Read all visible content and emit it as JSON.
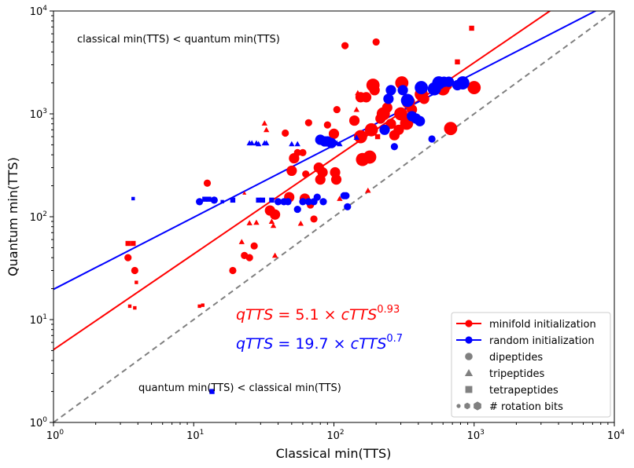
{
  "chart_data": {
    "type": "scatter",
    "xlabel": "Classical min(TTS)",
    "ylabel": "Quantum min(TTS)",
    "xscale": "log",
    "yscale": "log",
    "xlim": [
      1,
      10000
    ],
    "ylim": [
      1,
      10000
    ],
    "x_ticks": [
      {
        "value": 1,
        "base": "10",
        "exp": "0"
      },
      {
        "value": 10,
        "base": "10",
        "exp": "1"
      },
      {
        "value": 100,
        "base": "10",
        "exp": "2"
      },
      {
        "value": 1000,
        "base": "10",
        "exp": "3"
      },
      {
        "value": 10000,
        "base": "10",
        "exp": "4"
      }
    ],
    "y_ticks": [
      {
        "value": 1,
        "base": "10",
        "exp": "0"
      },
      {
        "value": 10,
        "base": "10",
        "exp": "1"
      },
      {
        "value": 100,
        "base": "10",
        "exp": "2"
      },
      {
        "value": 1000,
        "base": "10",
        "exp": "3"
      },
      {
        "value": 10000,
        "base": "10",
        "exp": "4"
      }
    ],
    "annotations": {
      "upper": "classical min(TTS) < quantum min(TTS)",
      "lower": "quantum min(TTS) < classical min(TTS)"
    },
    "equations": {
      "minifold": {
        "lhs": "qTTS",
        "coef": "5.1",
        "var": "cTTS",
        "exp": "0.93",
        "color": "#ff0000"
      },
      "random": {
        "lhs": "qTTS",
        "coef": "19.7",
        "var": "cTTS",
        "exp": "0.7",
        "color": "#0000ff"
      }
    },
    "fits": [
      {
        "series": "minifold initialization",
        "coef": 5.1,
        "exp": 0.93,
        "color": "#ff0000"
      },
      {
        "series": "random initialization",
        "coef": 19.7,
        "exp": 0.7,
        "color": "#0000ff"
      }
    ],
    "diagonal": {
      "style": "dashed",
      "color": "#808080"
    },
    "legend": {
      "position": "lower-right",
      "entries": [
        {
          "label": "minifold initialization",
          "kind": "line-marker",
          "color": "#ff0000"
        },
        {
          "label": "random initialization",
          "kind": "line-marker",
          "color": "#0000ff"
        },
        {
          "label": "dipeptides",
          "kind": "circle",
          "color": "#808080"
        },
        {
          "label": "tripeptides",
          "kind": "triangle",
          "color": "#808080"
        },
        {
          "label": "tetrapeptides",
          "kind": "square",
          "color": "#808080"
        },
        {
          "label": "# rotation bits",
          "kind": "sizes",
          "color": "#808080"
        }
      ]
    },
    "series": [
      {
        "name": "minifold initialization",
        "color": "#ff0000",
        "points": [
          {
            "x": 3.4,
            "y": 40,
            "shape": "circle",
            "size": "m"
          },
          {
            "x": 3.8,
            "y": 30,
            "shape": "circle",
            "size": "m"
          },
          {
            "x": 3.4,
            "y": 55,
            "shape": "square",
            "size": "s"
          },
          {
            "x": 3.7,
            "y": 55,
            "shape": "square",
            "size": "s"
          },
          {
            "x": 3.9,
            "y": 23,
            "shape": "square",
            "size": "xs"
          },
          {
            "x": 3.5,
            "y": 13.5,
            "shape": "square",
            "size": "xs"
          },
          {
            "x": 3.8,
            "y": 13,
            "shape": "square",
            "size": "xs"
          },
          {
            "x": 11,
            "y": 13.5,
            "shape": "square",
            "size": "xs"
          },
          {
            "x": 11.6,
            "y": 13.8,
            "shape": "square",
            "size": "xs"
          },
          {
            "x": 12.5,
            "y": 212,
            "shape": "circle",
            "size": "m"
          },
          {
            "x": 19,
            "y": 30,
            "shape": "circle",
            "size": "m"
          },
          {
            "x": 22,
            "y": 57,
            "shape": "triangle",
            "size": "s"
          },
          {
            "x": 23,
            "y": 42,
            "shape": "circle",
            "size": "m"
          },
          {
            "x": 25,
            "y": 40,
            "shape": "circle",
            "size": "m"
          },
          {
            "x": 27,
            "y": 52,
            "shape": "circle",
            "size": "m"
          },
          {
            "x": 23,
            "y": 170,
            "shape": "triangle",
            "size": "xs"
          },
          {
            "x": 25,
            "y": 87,
            "shape": "triangle",
            "size": "s"
          },
          {
            "x": 28,
            "y": 88,
            "shape": "triangle",
            "size": "s"
          },
          {
            "x": 32,
            "y": 810,
            "shape": "triangle",
            "size": "s"
          },
          {
            "x": 33,
            "y": 700,
            "shape": "triangle",
            "size": "s"
          },
          {
            "x": 35,
            "y": 115,
            "shape": "circle",
            "size": "l"
          },
          {
            "x": 38,
            "y": 105,
            "shape": "circle",
            "size": "l"
          },
          {
            "x": 36,
            "y": 90,
            "shape": "triangle",
            "size": "s"
          },
          {
            "x": 37,
            "y": 82,
            "shape": "triangle",
            "size": "s"
          },
          {
            "x": 38,
            "y": 42,
            "shape": "triangle",
            "size": "s"
          },
          {
            "x": 45,
            "y": 650,
            "shape": "circle",
            "size": "m"
          },
          {
            "x": 48,
            "y": 155,
            "shape": "circle",
            "size": "l"
          },
          {
            "x": 50,
            "y": 280,
            "shape": "circle",
            "size": "l"
          },
          {
            "x": 52,
            "y": 370,
            "shape": "circle",
            "size": "l"
          },
          {
            "x": 55,
            "y": 420,
            "shape": "circle",
            "size": "m"
          },
          {
            "x": 60,
            "y": 420,
            "shape": "circle",
            "size": "m"
          },
          {
            "x": 58,
            "y": 86,
            "shape": "triangle",
            "size": "s"
          },
          {
            "x": 62,
            "y": 150,
            "shape": "circle",
            "size": "l"
          },
          {
            "x": 63,
            "y": 260,
            "shape": "circle",
            "size": "m"
          },
          {
            "x": 66,
            "y": 820,
            "shape": "circle",
            "size": "m"
          },
          {
            "x": 68,
            "y": 130,
            "shape": "circle",
            "size": "m"
          },
          {
            "x": 72,
            "y": 95,
            "shape": "circle",
            "size": "m"
          },
          {
            "x": 78,
            "y": 300,
            "shape": "circle",
            "size": "l"
          },
          {
            "x": 80,
            "y": 230,
            "shape": "circle",
            "size": "l"
          },
          {
            "x": 83,
            "y": 270,
            "shape": "circle",
            "size": "l"
          },
          {
            "x": 90,
            "y": 780,
            "shape": "circle",
            "size": "m"
          },
          {
            "x": 100,
            "y": 640,
            "shape": "circle",
            "size": "l"
          },
          {
            "x": 105,
            "y": 1100,
            "shape": "circle",
            "size": "m"
          },
          {
            "x": 102,
            "y": 270,
            "shape": "circle",
            "size": "l"
          },
          {
            "x": 104,
            "y": 230,
            "shape": "circle",
            "size": "l"
          },
          {
            "x": 110,
            "y": 150,
            "shape": "triangle",
            "size": "s"
          },
          {
            "x": 120,
            "y": 4600,
            "shape": "circle",
            "size": "m"
          },
          {
            "x": 140,
            "y": 860,
            "shape": "circle",
            "size": "l"
          },
          {
            "x": 145,
            "y": 1100,
            "shape": "triangle",
            "size": "s"
          },
          {
            "x": 148,
            "y": 1600,
            "shape": "triangle",
            "size": "s"
          },
          {
            "x": 155,
            "y": 1450,
            "shape": "circle",
            "size": "l"
          },
          {
            "x": 155,
            "y": 600,
            "shape": "circle",
            "size": "xl"
          },
          {
            "x": 160,
            "y": 360,
            "shape": "circle",
            "size": "xl"
          },
          {
            "x": 170,
            "y": 1450,
            "shape": "circle",
            "size": "l"
          },
          {
            "x": 175,
            "y": 180,
            "shape": "triangle",
            "size": "s"
          },
          {
            "x": 180,
            "y": 380,
            "shape": "circle",
            "size": "xl"
          },
          {
            "x": 185,
            "y": 700,
            "shape": "circle",
            "size": "xl"
          },
          {
            "x": 190,
            "y": 1900,
            "shape": "circle",
            "size": "xl"
          },
          {
            "x": 195,
            "y": 1700,
            "shape": "circle",
            "size": "l"
          },
          {
            "x": 200,
            "y": 5000,
            "shape": "circle",
            "size": "m"
          },
          {
            "x": 205,
            "y": 600,
            "shape": "square",
            "size": "s"
          },
          {
            "x": 215,
            "y": 900,
            "shape": "circle",
            "size": "l"
          },
          {
            "x": 225,
            "y": 1000,
            "shape": "circle",
            "size": "xl"
          },
          {
            "x": 240,
            "y": 1150,
            "shape": "circle",
            "size": "l"
          },
          {
            "x": 255,
            "y": 800,
            "shape": "circle",
            "size": "l"
          },
          {
            "x": 270,
            "y": 620,
            "shape": "circle",
            "size": "l"
          },
          {
            "x": 290,
            "y": 700,
            "shape": "circle",
            "size": "l"
          },
          {
            "x": 300,
            "y": 1000,
            "shape": "circle",
            "size": "xl"
          },
          {
            "x": 305,
            "y": 2000,
            "shape": "circle",
            "size": "xl"
          },
          {
            "x": 330,
            "y": 810,
            "shape": "circle",
            "size": "xl"
          },
          {
            "x": 340,
            "y": 1300,
            "shape": "circle",
            "size": "xl"
          },
          {
            "x": 360,
            "y": 1100,
            "shape": "circle",
            "size": "l"
          },
          {
            "x": 420,
            "y": 1550,
            "shape": "circle",
            "size": "xl"
          },
          {
            "x": 440,
            "y": 1400,
            "shape": "circle",
            "size": "l"
          },
          {
            "x": 600,
            "y": 1750,
            "shape": "circle",
            "size": "xl"
          },
          {
            "x": 640,
            "y": 1900,
            "shape": "circle",
            "size": "l"
          },
          {
            "x": 680,
            "y": 720,
            "shape": "circle",
            "size": "xl"
          },
          {
            "x": 760,
            "y": 3200,
            "shape": "square",
            "size": "s"
          },
          {
            "x": 960,
            "y": 6800,
            "shape": "square",
            "size": "s"
          },
          {
            "x": 1000,
            "y": 1800,
            "shape": "circle",
            "size": "xl"
          }
        ]
      },
      {
        "name": "random initialization",
        "color": "#0000ff",
        "points": [
          {
            "x": 3.7,
            "y": 150,
            "shape": "square",
            "size": "xs"
          },
          {
            "x": 11,
            "y": 140,
            "shape": "circle",
            "size": "m"
          },
          {
            "x": 12,
            "y": 148,
            "shape": "square",
            "size": "s"
          },
          {
            "x": 12.8,
            "y": 148,
            "shape": "square",
            "size": "s"
          },
          {
            "x": 13.5,
            "y": 2.0,
            "shape": "square",
            "size": "s"
          },
          {
            "x": 14,
            "y": 145,
            "shape": "circle",
            "size": "m"
          },
          {
            "x": 16,
            "y": 140,
            "shape": "square",
            "size": "xs"
          },
          {
            "x": 19,
            "y": 145,
            "shape": "square",
            "size": "s"
          },
          {
            "x": 25,
            "y": 520,
            "shape": "triangle",
            "size": "s"
          },
          {
            "x": 26,
            "y": 520,
            "shape": "triangle",
            "size": "s"
          },
          {
            "x": 28,
            "y": 520,
            "shape": "triangle",
            "size": "s"
          },
          {
            "x": 29,
            "y": 510,
            "shape": "triangle",
            "size": "s"
          },
          {
            "x": 29,
            "y": 145,
            "shape": "square",
            "size": "s"
          },
          {
            "x": 31,
            "y": 145,
            "shape": "square",
            "size": "s"
          },
          {
            "x": 32,
            "y": 520,
            "shape": "triangle",
            "size": "s"
          },
          {
            "x": 33,
            "y": 520,
            "shape": "triangle",
            "size": "s"
          },
          {
            "x": 36,
            "y": 145,
            "shape": "square",
            "size": "s"
          },
          {
            "x": 40,
            "y": 140,
            "shape": "circle",
            "size": "m"
          },
          {
            "x": 44,
            "y": 140,
            "shape": "circle",
            "size": "m"
          },
          {
            "x": 47,
            "y": 140,
            "shape": "circle",
            "size": "m"
          },
          {
            "x": 50,
            "y": 510,
            "shape": "triangle",
            "size": "s"
          },
          {
            "x": 55,
            "y": 510,
            "shape": "triangle",
            "size": "s"
          },
          {
            "x": 55,
            "y": 118,
            "shape": "circle",
            "size": "m"
          },
          {
            "x": 60,
            "y": 140,
            "shape": "circle",
            "size": "m"
          },
          {
            "x": 66,
            "y": 140,
            "shape": "circle",
            "size": "m"
          },
          {
            "x": 72,
            "y": 140,
            "shape": "circle",
            "size": "m"
          },
          {
            "x": 76,
            "y": 155,
            "shape": "circle",
            "size": "m"
          },
          {
            "x": 80,
            "y": 560,
            "shape": "circle",
            "size": "l"
          },
          {
            "x": 84,
            "y": 140,
            "shape": "circle",
            "size": "m"
          },
          {
            "x": 86,
            "y": 540,
            "shape": "circle",
            "size": "l"
          },
          {
            "x": 90,
            "y": 540,
            "shape": "circle",
            "size": "l"
          },
          {
            "x": 96,
            "y": 520,
            "shape": "circle",
            "size": "l"
          },
          {
            "x": 105,
            "y": 520,
            "shape": "triangle",
            "size": "s"
          },
          {
            "x": 110,
            "y": 510,
            "shape": "triangle",
            "size": "s"
          },
          {
            "x": 118,
            "y": 160,
            "shape": "circle",
            "size": "m"
          },
          {
            "x": 122,
            "y": 160,
            "shape": "circle",
            "size": "m"
          },
          {
            "x": 125,
            "y": 125,
            "shape": "circle",
            "size": "m"
          },
          {
            "x": 145,
            "y": 590,
            "shape": "triangle",
            "size": "s"
          },
          {
            "x": 230,
            "y": 700,
            "shape": "circle",
            "size": "l"
          },
          {
            "x": 245,
            "y": 1400,
            "shape": "circle",
            "size": "l"
          },
          {
            "x": 255,
            "y": 1700,
            "shape": "circle",
            "size": "l"
          },
          {
            "x": 270,
            "y": 480,
            "shape": "circle",
            "size": "m"
          },
          {
            "x": 310,
            "y": 1700,
            "shape": "circle",
            "size": "l"
          },
          {
            "x": 335,
            "y": 1350,
            "shape": "circle",
            "size": "xl"
          },
          {
            "x": 360,
            "y": 950,
            "shape": "circle",
            "size": "l"
          },
          {
            "x": 385,
            "y": 900,
            "shape": "circle",
            "size": "l"
          },
          {
            "x": 410,
            "y": 850,
            "shape": "circle",
            "size": "l"
          },
          {
            "x": 420,
            "y": 1800,
            "shape": "circle",
            "size": "xl"
          },
          {
            "x": 500,
            "y": 570,
            "shape": "circle",
            "size": "m"
          },
          {
            "x": 520,
            "y": 1750,
            "shape": "circle",
            "size": "xl"
          },
          {
            "x": 560,
            "y": 2000,
            "shape": "circle",
            "size": "xl"
          },
          {
            "x": 610,
            "y": 2050,
            "shape": "circle",
            "size": "l"
          },
          {
            "x": 660,
            "y": 2050,
            "shape": "circle",
            "size": "l"
          },
          {
            "x": 760,
            "y": 1900,
            "shape": "circle",
            "size": "l"
          },
          {
            "x": 830,
            "y": 2000,
            "shape": "circle",
            "size": "xl"
          }
        ]
      }
    ]
  }
}
